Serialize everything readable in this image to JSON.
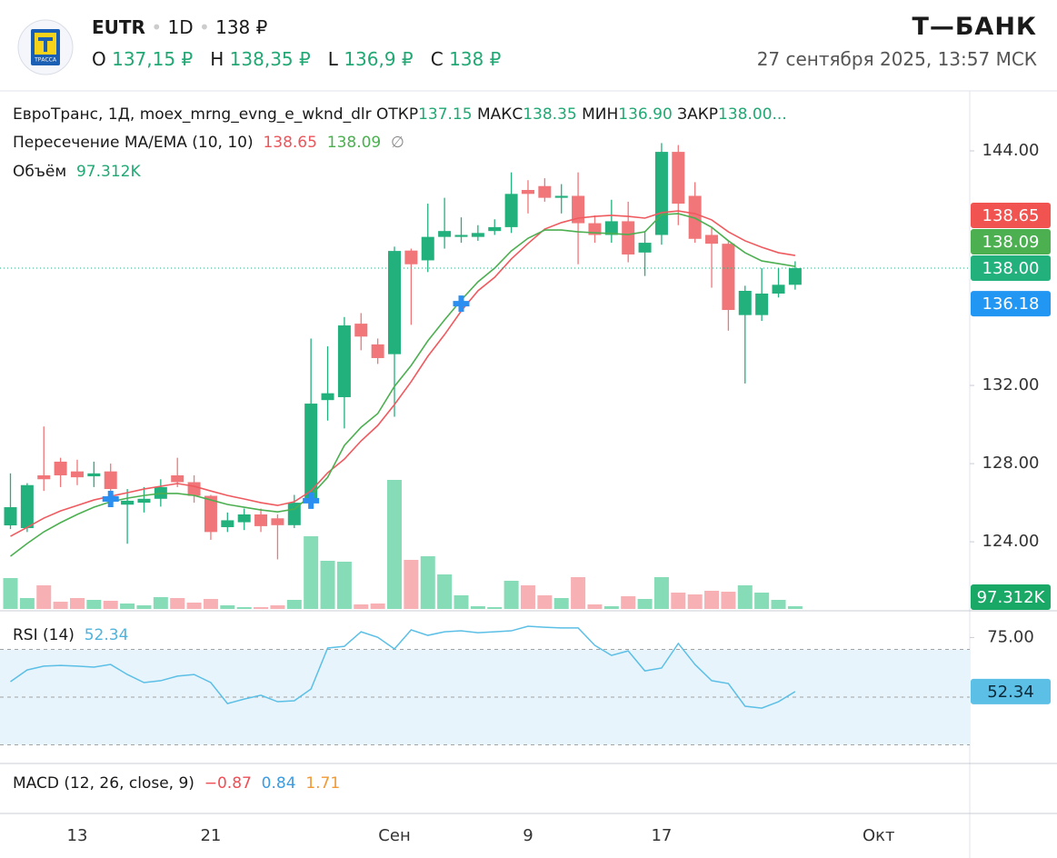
{
  "header": {
    "logo_text": "ТРАССА",
    "ticker": "EUTR",
    "interval": "1D",
    "price": "138 ₽",
    "ohlc": [
      {
        "label": "O",
        "value": "137,15 ₽"
      },
      {
        "label": "H",
        "value": "138,35 ₽"
      },
      {
        "label": "L",
        "value": "136,9 ₽"
      },
      {
        "label": "C",
        "value": "138 ₽"
      }
    ],
    "brand": "Т—БАНК",
    "datetime": "27 сентября 2025, 13:57 МСК"
  },
  "chart_data": [
    {
      "type": "candlestick",
      "title": "ЕвроТранс, 1Д, moex_mrng_evng_e_wknd_dlr",
      "legend_ohlc": [
        {
          "label": "ОТКР",
          "value": "137.15"
        },
        {
          "label": "МАКС",
          "value": "138.35"
        },
        {
          "label": "МИН",
          "value": "136.90"
        },
        {
          "label": "ЗАКР",
          "value": "138.00..."
        }
      ],
      "last_close_label": "138.00",
      "up_color": "#22b07d",
      "down_color": "#f0767a",
      "categories": [
        null,
        null,
        null,
        null,
        "13",
        null,
        null,
        null,
        null,
        null,
        null,
        null,
        "21",
        null,
        null,
        null,
        null,
        null,
        null,
        null,
        null,
        null,
        null,
        "Сен",
        null,
        null,
        null,
        null,
        null,
        null,
        null,
        "9",
        null,
        null,
        null,
        null,
        null,
        null,
        null,
        "17",
        null,
        null,
        null,
        null,
        null,
        null,
        null,
        null,
        null,
        null,
        null,
        null,
        "Окт",
        null,
        null,
        null
      ],
      "open": [
        124.84,
        124.7,
        127.4,
        128.1,
        127.6,
        127.35,
        127.6,
        125.9,
        126.0,
        126.2,
        127.4,
        127.05,
        126.35,
        124.75,
        125.0,
        125.4,
        125.2,
        124.85,
        126.0,
        131.25,
        131.4,
        135.16,
        134.1,
        133.6,
        138.9,
        138.4,
        139.6,
        139.6,
        139.6,
        139.9,
        140.1,
        142.0,
        142.2,
        141.6,
        141.7,
        140.3,
        139.7,
        140.4,
        138.8,
        139.7,
        143.95,
        141.7,
        139.7,
        139.25,
        135.6,
        135.6,
        136.7,
        137.15,
        null,
        null,
        null,
        null,
        null,
        null,
        null,
        null
      ],
      "high": [
        127.5,
        127.0,
        129.9,
        128.3,
        128.2,
        128.1,
        128.0,
        126.7,
        126.8,
        127.2,
        128.3,
        127.4,
        126.4,
        125.5,
        125.7,
        125.7,
        125.4,
        126.4,
        134.4,
        134.0,
        135.5,
        135.7,
        134.4,
        139.1,
        139.0,
        141.3,
        141.6,
        140.6,
        140.2,
        140.5,
        142.9,
        142.5,
        142.6,
        142.3,
        142.9,
        140.7,
        141.5,
        141.4,
        139.9,
        144.4,
        144.3,
        142.4,
        140.1,
        139.4,
        137.1,
        138.0,
        138.0,
        138.35,
        null,
        null,
        null,
        null,
        null,
        null,
        null,
        null
      ],
      "low": [
        124.65,
        124.5,
        126.6,
        126.8,
        126.9,
        126.8,
        126.1,
        123.9,
        125.5,
        125.8,
        126.8,
        126.0,
        124.1,
        124.5,
        124.6,
        124.5,
        123.1,
        124.7,
        125.7,
        130.2,
        129.8,
        133.8,
        133.1,
        130.4,
        135.1,
        137.8,
        139.0,
        139.3,
        139.4,
        139.7,
        139.8,
        140.8,
        141.4,
        140.8,
        138.2,
        139.3,
        139.3,
        138.3,
        137.6,
        139.2,
        140.2,
        139.3,
        137.0,
        134.8,
        132.1,
        135.3,
        136.5,
        136.9,
        null,
        null,
        null,
        null,
        null,
        null,
        null,
        null
      ],
      "close": [
        125.77,
        126.9,
        127.2,
        127.4,
        127.3,
        127.5,
        126.7,
        126.1,
        126.2,
        126.8,
        127.05,
        126.35,
        124.5,
        125.1,
        125.4,
        124.8,
        124.85,
        126.0,
        131.07,
        131.6,
        135.07,
        134.5,
        133.4,
        138.88,
        138.2,
        139.6,
        139.9,
        139.7,
        139.8,
        140.1,
        141.8,
        141.8,
        141.6,
        141.7,
        140.3,
        139.7,
        140.4,
        138.7,
        139.3,
        143.95,
        141.3,
        139.5,
        139.25,
        135.86,
        136.84,
        136.7,
        137.15,
        138.0,
        null,
        null,
        null,
        null,
        null,
        null,
        null,
        null
      ],
      "indicator": {
        "name": "Пересечение MA/EMA (10, 10)",
        "no_value_label": "∅",
        "cross_color": "#2a8ff0",
        "series": [
          {
            "color": "#ef5a5f",
            "values": [
              124.28,
              124.74,
              125.21,
              125.58,
              125.86,
              126.14,
              126.33,
              126.51,
              126.7,
              126.84,
              126.98,
              126.84,
              126.6,
              126.37,
              126.19,
              126.0,
              125.86,
              126.05,
              126.6,
              127.53,
              128.23,
              129.16,
              129.95,
              131.02,
              132.19,
              133.49,
              134.6,
              135.81,
              136.84,
              137.53,
              138.47,
              139.26,
              140.0,
              140.33,
              140.56,
              140.65,
              140.7,
              140.65,
              140.56,
              140.84,
              140.93,
              140.79,
              140.47,
              139.86,
              139.4,
              139.07,
              138.79,
              138.65,
              null,
              null,
              null,
              null,
              null,
              null,
              null,
              null
            ]
          },
          {
            "color": "#4caf50",
            "values": [
              123.26,
              123.91,
              124.51,
              124.98,
              125.4,
              125.77,
              126.05,
              126.23,
              126.37,
              126.47,
              126.47,
              126.37,
              126.14,
              125.91,
              125.77,
              125.63,
              125.53,
              125.67,
              126.37,
              127.3,
              128.93,
              129.86,
              130.56,
              131.95,
              133.02,
              134.28,
              135.35,
              136.37,
              137.3,
              138.0,
              138.88,
              139.53,
              139.95,
              139.95,
              139.86,
              139.81,
              139.77,
              139.72,
              139.86,
              140.74,
              140.79,
              140.56,
              140.09,
              139.4,
              138.79,
              138.37,
              138.23,
              138.09,
              null,
              null,
              null,
              null,
              null,
              null,
              null,
              null
            ]
          }
        ],
        "cross_values": [
          null,
          null,
          null,
          null,
          null,
          null,
          126.19,
          null,
          null,
          null,
          null,
          null,
          null,
          null,
          null,
          null,
          null,
          null,
          126.1,
          null,
          null,
          null,
          null,
          null,
          null,
          null,
          null,
          136.18,
          null,
          null,
          null,
          null,
          null,
          null,
          null,
          null,
          null,
          null,
          null,
          null,
          null,
          null,
          null,
          null,
          null,
          null,
          null,
          null,
          null,
          null,
          null,
          null,
          null,
          null,
          null,
          null
        ]
      },
      "ylim": [
        120.47,
        147.07
      ],
      "yticks": [
        {
          "value": 144,
          "label": "144.00"
        },
        {
          "value": 132,
          "label": "132.00"
        },
        {
          "value": 128,
          "label": "128.00"
        },
        {
          "value": 124,
          "label": "124.00"
        }
      ]
    },
    {
      "type": "bar",
      "title": "Объём",
      "up_color": "#86dcb6",
      "down_color": "#f7b1b5",
      "last_value_label": "97.312K",
      "values": [
        1103000,
        389000,
        843000,
        259000,
        389000,
        324000,
        292000,
        195000,
        130000,
        422000,
        389000,
        227000,
        357000,
        130000,
        65000,
        65000,
        130000,
        324000,
        2595000,
        1719000,
        1687000,
        162000,
        195000,
        4606000,
        1752000,
        1881000,
        1233000,
        487000,
        97000,
        65000,
        1006000,
        843000,
        487000,
        389000,
        1135000,
        162000,
        97000,
        454000,
        357000,
        1135000,
        584000,
        519000,
        649000,
        616000,
        843000,
        584000,
        324000,
        97312,
        null,
        null,
        null,
        null,
        null,
        null,
        null,
        null
      ],
      "ylim": [
        0,
        6000000
      ]
    },
    {
      "type": "line",
      "title": "RSI (14)",
      "color": "#5bbfe6",
      "values": [
        56.5,
        61.4,
        63.0,
        63.3,
        63.0,
        62.6,
        63.7,
        59.5,
        56.1,
        56.9,
        58.8,
        59.5,
        56.1,
        47.3,
        49.2,
        50.8,
        48.1,
        48.5,
        53.4,
        70.6,
        71.3,
        77.4,
        75.1,
        70.2,
        78.2,
        75.9,
        77.4,
        77.8,
        77.0,
        77.4,
        77.8,
        79.7,
        79.3,
        79.0,
        79.0,
        71.7,
        67.5,
        69.4,
        61.0,
        62.2,
        72.5,
        63.7,
        56.9,
        55.7,
        46.2,
        45.4,
        48.1,
        52.34,
        null,
        null,
        null,
        null,
        null,
        null,
        null,
        null
      ],
      "ylim": [
        22.2,
        86.2
      ],
      "yticks": [
        {
          "value": 75,
          "label": "75.00"
        }
      ],
      "levels": [
        70,
        50,
        30
      ]
    },
    {
      "type": "macd",
      "title": "MACD (12, 26, close, 9)",
      "values": [
        -0.87,
        0.84,
        1.71
      ],
      "value_labels": [
        "−0.87",
        "0.84",
        "1.71"
      ],
      "colors": [
        "#ef4f55",
        "#3d9be0",
        "#f09a36"
      ]
    }
  ]
}
